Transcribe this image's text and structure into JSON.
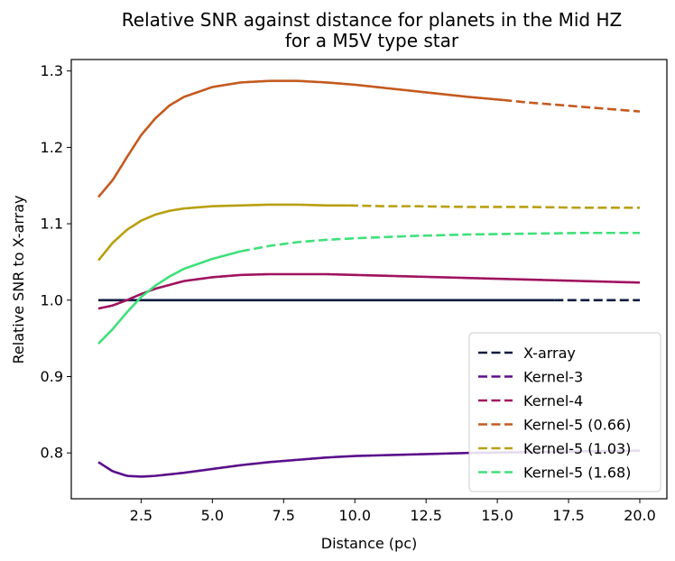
{
  "chart_data": {
    "type": "line",
    "title": [
      "Relative SNR against distance for planets in the Mid HZ",
      "for a M5V type star"
    ],
    "xlabel": "Distance (pc)",
    "ylabel": "Relative SNR to X-array",
    "xlim": [
      0.05,
      20.95
    ],
    "ylim": [
      0.74,
      1.315
    ],
    "xticks": [
      2.5,
      5.0,
      7.5,
      10.0,
      12.5,
      15.0,
      17.5,
      20.0
    ],
    "xtick_labels": [
      "2.5",
      "5.0",
      "7.5",
      "10.0",
      "12.5",
      "15.0",
      "17.5",
      "20.0"
    ],
    "yticks": [
      0.8,
      0.9,
      1.0,
      1.1,
      1.2,
      1.3
    ],
    "ytick_labels": [
      "0.8",
      "0.9",
      "1.0",
      "1.1",
      "1.2",
      "1.3"
    ],
    "legend_position": "bottom-right",
    "series": [
      {
        "name": "X-array",
        "color": "#0d1b3e",
        "solid_until": 17.0,
        "x": [
          1,
          20
        ],
        "y": [
          1.0,
          1.0
        ]
      },
      {
        "name": "Kernel-3",
        "color": "#5a0f8a",
        "solid_until": 20.0,
        "x": [
          1,
          1.5,
          2,
          2.5,
          3,
          4,
          5,
          6,
          7,
          8,
          9,
          10,
          12,
          14,
          16,
          18,
          20
        ],
        "y": [
          0.788,
          0.776,
          0.77,
          0.769,
          0.77,
          0.774,
          0.779,
          0.784,
          0.788,
          0.791,
          0.794,
          0.796,
          0.798,
          0.8,
          0.801,
          0.802,
          0.803
        ]
      },
      {
        "name": "Kernel-4",
        "color": "#a0135f",
        "solid_until": 20.0,
        "x": [
          1,
          1.5,
          2,
          2.5,
          3,
          4,
          5,
          6,
          7,
          8,
          9,
          10,
          12,
          14,
          16,
          18,
          20
        ],
        "y": [
          0.989,
          0.993,
          1.0,
          1.008,
          1.015,
          1.025,
          1.03,
          1.033,
          1.034,
          1.034,
          1.034,
          1.033,
          1.031,
          1.029,
          1.027,
          1.025,
          1.023
        ]
      },
      {
        "name": "Kernel-5 (0.66)",
        "color": "#c45a1f",
        "solid_until": 15.2,
        "x": [
          1,
          1.5,
          2,
          2.5,
          3,
          3.5,
          4,
          5,
          6,
          7,
          8,
          9,
          10,
          11,
          12,
          13,
          14,
          15.2,
          16,
          17,
          18,
          19,
          20
        ],
        "y": [
          1.135,
          1.157,
          1.187,
          1.216,
          1.238,
          1.255,
          1.266,
          1.279,
          1.285,
          1.287,
          1.287,
          1.285,
          1.282,
          1.278,
          1.274,
          1.27,
          1.266,
          1.262,
          1.259,
          1.256,
          1.253,
          1.25,
          1.247
        ]
      },
      {
        "name": "Kernel-5 (1.03)",
        "color": "#b8a010",
        "solid_until": 9.8,
        "x": [
          1,
          1.5,
          2,
          2.5,
          3,
          3.5,
          4,
          5,
          6,
          7,
          8,
          9,
          9.8,
          11,
          12,
          14,
          16,
          18,
          20
        ],
        "y": [
          1.052,
          1.075,
          1.092,
          1.104,
          1.112,
          1.117,
          1.12,
          1.123,
          1.124,
          1.125,
          1.125,
          1.124,
          1.124,
          1.123,
          1.123,
          1.122,
          1.122,
          1.121,
          1.121
        ]
      },
      {
        "name": "Kernel-5 (1.68)",
        "color": "#3fe07a",
        "solid_until": 6.0,
        "x": [
          1,
          1.5,
          2,
          2.5,
          3,
          3.5,
          4,
          5,
          6,
          7,
          8,
          9,
          10,
          12,
          14,
          16,
          18,
          20
        ],
        "y": [
          0.943,
          0.962,
          0.984,
          1.004,
          1.019,
          1.031,
          1.041,
          1.054,
          1.064,
          1.071,
          1.076,
          1.079,
          1.081,
          1.084,
          1.086,
          1.087,
          1.088,
          1.088
        ]
      }
    ]
  }
}
